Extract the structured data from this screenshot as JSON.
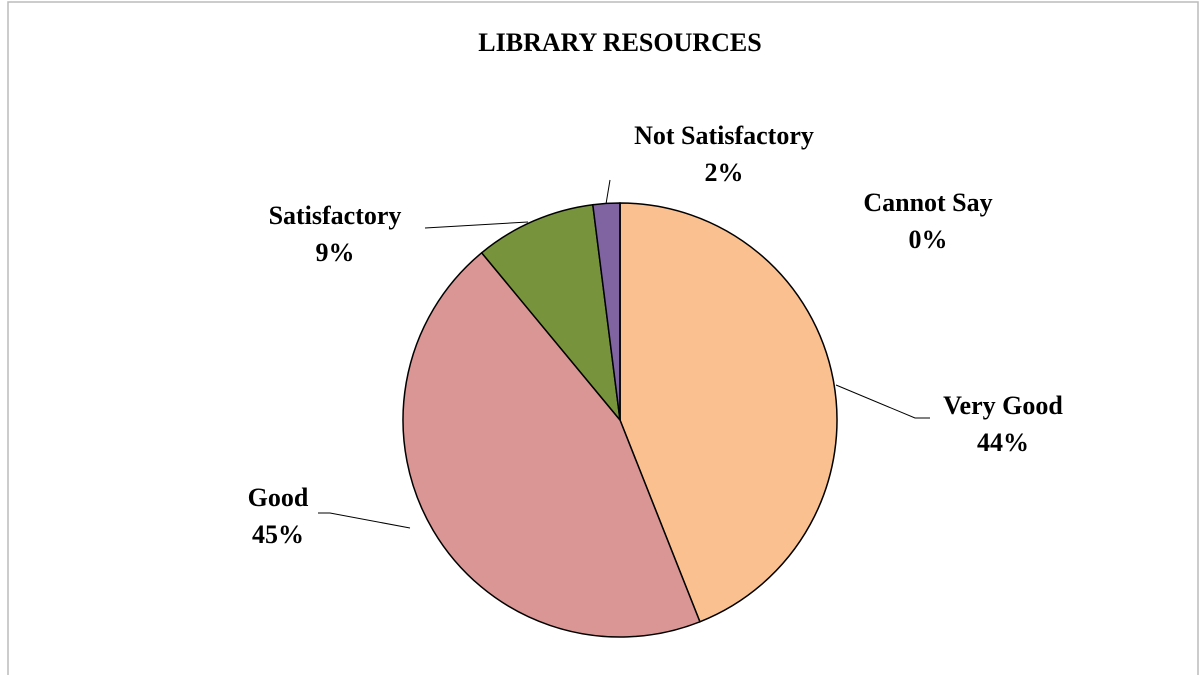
{
  "chart_data": {
    "type": "pie",
    "title": "LIBRARY RESOURCES",
    "categories": [
      "Very Good",
      "Good",
      "Satisfactory",
      "Not Satisfactory",
      "Cannot Say"
    ],
    "values": [
      44,
      45,
      9,
      2,
      0
    ],
    "value_labels": [
      "44%",
      "45%",
      "9%",
      "2%",
      "0%"
    ],
    "colors": [
      "#FAC090",
      "#D99694",
      "#77933C",
      "#8064A2",
      "#4BACC6"
    ]
  }
}
